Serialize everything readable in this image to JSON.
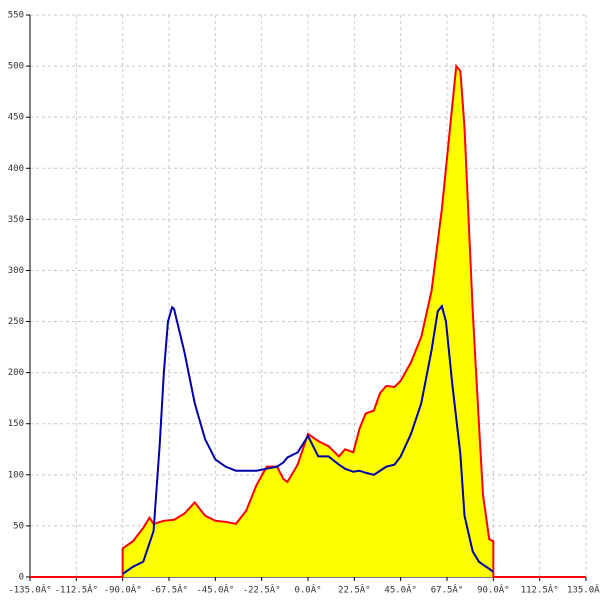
{
  "chart_data": {
    "type": "area",
    "xlim": [
      -135,
      135
    ],
    "ylim": [
      0,
      550
    ],
    "xticks": [
      {
        "value": -135,
        "label": "-135.0Â°"
      },
      {
        "value": -112.5,
        "label": "-112.5Â°"
      },
      {
        "value": -90,
        "label": "-90.0Â°"
      },
      {
        "value": -67.5,
        "label": "-67.5Â°"
      },
      {
        "value": -45,
        "label": "-45.0Â°"
      },
      {
        "value": -22.5,
        "label": "-22.5Â°"
      },
      {
        "value": 0,
        "label": "0.0Â°"
      },
      {
        "value": 22.5,
        "label": "22.5Â°"
      },
      {
        "value": 45,
        "label": "45.0Â°"
      },
      {
        "value": 67.5,
        "label": "67.5Â°"
      },
      {
        "value": 90,
        "label": "90.0Â°"
      },
      {
        "value": 112.5,
        "label": "112.5Â°"
      },
      {
        "value": 135,
        "label": "135.0Â°"
      }
    ],
    "yticks": [
      0,
      50,
      100,
      150,
      200,
      250,
      300,
      350,
      400,
      450,
      500,
      550
    ],
    "grid": true,
    "series": [
      {
        "color": "#ff0000",
        "fill": "#ffff00",
        "x": [
          -135,
          -90,
          -90,
          -85,
          -80,
          -77,
          -75,
          -70,
          -65,
          -60,
          -55,
          -50,
          -45,
          -40,
          -35,
          -30,
          -25,
          -20,
          -15,
          -12,
          -10,
          -5,
          0,
          5,
          10,
          15,
          18,
          22,
          25,
          28,
          32,
          35,
          38,
          42,
          45,
          50,
          55,
          60,
          65,
          70,
          72,
          74,
          76,
          80,
          83,
          85,
          88,
          90,
          90,
          135
        ],
        "values": [
          0,
          0,
          28,
          35,
          48,
          58,
          52,
          55,
          56,
          62,
          73,
          60,
          55,
          54,
          52,
          65,
          90,
          108,
          108,
          96,
          93,
          110,
          140,
          133,
          128,
          118,
          125,
          122,
          145,
          160,
          163,
          180,
          187,
          186,
          192,
          210,
          235,
          280,
          360,
          460,
          500,
          495,
          440,
          260,
          150,
          80,
          37,
          35,
          0,
          0
        ]
      },
      {
        "color": "#0000aa",
        "x": [
          -90,
          -85,
          -80,
          -75,
          -72,
          -70,
          -68,
          -66,
          -65,
          -60,
          -55,
          -50,
          -45,
          -40,
          -35,
          -30,
          -25,
          -20,
          -15,
          -12,
          -10,
          -5,
          0,
          5,
          10,
          15,
          18,
          22,
          25,
          28,
          32,
          35,
          38,
          42,
          45,
          50,
          55,
          60,
          63,
          65,
          67,
          70,
          74,
          76,
          80,
          83,
          85,
          88,
          90
        ],
        "values": [
          3,
          10,
          15,
          45,
          130,
          200,
          250,
          264,
          262,
          220,
          170,
          135,
          115,
          108,
          104,
          104,
          104,
          106,
          108,
          112,
          117,
          122,
          138,
          118,
          118,
          110,
          106,
          103,
          104,
          102,
          100,
          104,
          108,
          110,
          118,
          140,
          170,
          222,
          260,
          265,
          250,
          190,
          120,
          60,
          25,
          15,
          12,
          8,
          5
        ]
      }
    ]
  }
}
